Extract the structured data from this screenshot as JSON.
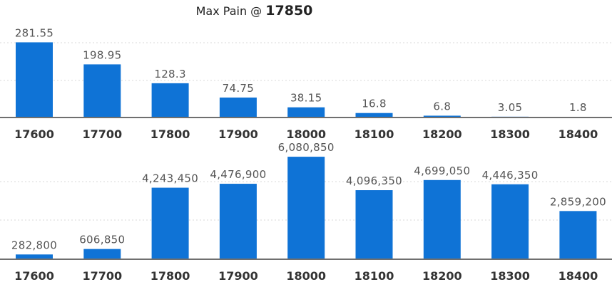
{
  "title": {
    "prefix": "Max Pain @",
    "value": "17850"
  },
  "colors": {
    "bar": "#0f73d6",
    "baseline": "#6f6f6f",
    "grid": "#d8d8d8"
  },
  "chart_data": [
    {
      "type": "bar",
      "categories": [
        "17600",
        "17700",
        "17800",
        "17900",
        "18000",
        "18100",
        "18200",
        "18300",
        "18400"
      ],
      "values": [
        281.55,
        198.95,
        128.3,
        74.75,
        38.15,
        16.8,
        6.8,
        3.05,
        1.8
      ],
      "value_labels": [
        "281.55",
        "198.95",
        "128.3",
        "74.75",
        "38.15",
        "16.8",
        "6.8",
        "3.05",
        "1.8"
      ],
      "ylim": [
        0,
        400
      ],
      "grid": true,
      "xlabel": "",
      "ylabel": ""
    },
    {
      "type": "bar",
      "categories": [
        "17600",
        "17700",
        "17800",
        "17900",
        "18000",
        "18100",
        "18200",
        "18300",
        "18400"
      ],
      "values": [
        282800,
        606850,
        4243450,
        4476900,
        6080850,
        4096350,
        4699050,
        4446350,
        2859200
      ],
      "value_labels": [
        "282,800",
        "606,850",
        "4,243,450",
        "4,476,900",
        "6,080,850",
        "4,096,350",
        "4,699,050",
        "4,446,350",
        "2,859,200"
      ],
      "ylim": [
        0,
        6000000
      ],
      "grid": true,
      "xlabel": "",
      "ylabel": ""
    }
  ]
}
